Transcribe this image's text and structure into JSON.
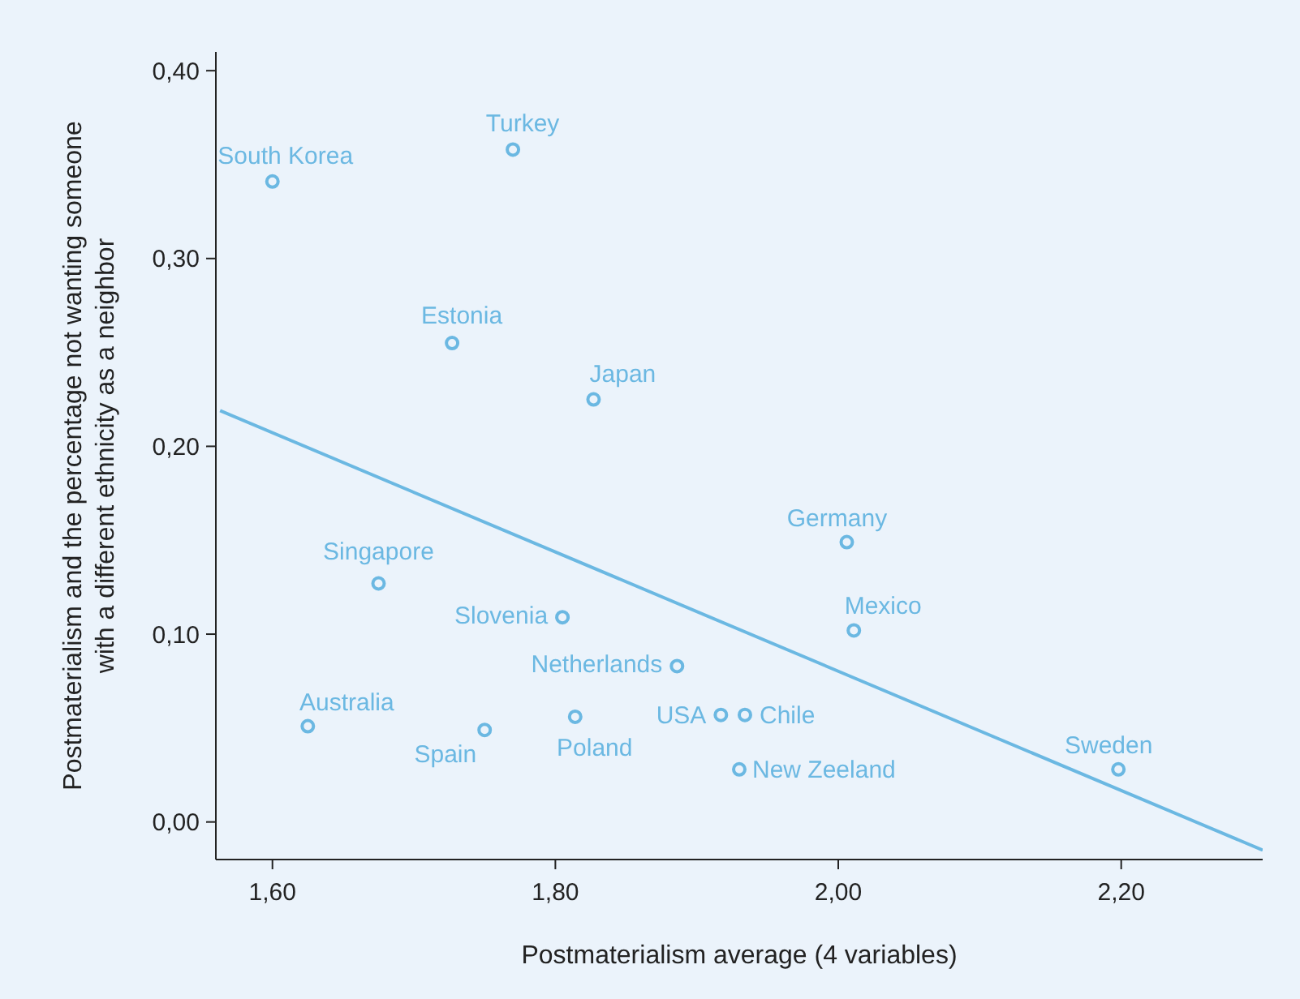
{
  "chart_data": {
    "type": "scatter",
    "xlabel": "Postmaterialism average (4 variables)",
    "ylabel": "Postmaterialism and the percentage not wanting someone with a different ethnicity as a neighbor",
    "xlim": [
      1.56,
      2.3
    ],
    "ylim": [
      -0.02,
      0.41
    ],
    "xticks": [
      {
        "value": 1.6,
        "label": "1,60"
      },
      {
        "value": 1.8,
        "label": "1,80"
      },
      {
        "value": 2.0,
        "label": "2,00"
      },
      {
        "value": 2.2,
        "label": "2,20"
      }
    ],
    "yticks": [
      {
        "value": 0,
        "label": "0,00"
      },
      {
        "value": 0.1,
        "label": "0,10"
      },
      {
        "value": 0.2,
        "label": "0,20"
      },
      {
        "value": 0.3,
        "label": "0,30"
      },
      {
        "value": 0.4,
        "label": "0,40"
      }
    ],
    "grid": false,
    "series": [
      {
        "marker": "circle",
        "color": "#6bb8e2",
        "x": [
          1.6,
          1.77,
          1.727,
          1.827,
          2.006,
          2.011,
          1.675,
          1.805,
          1.886,
          1.625,
          1.75,
          1.814,
          1.917,
          1.934,
          1.93,
          2.198
        ],
        "values": [
          0.341,
          0.358,
          0.255,
          0.225,
          0.149,
          0.102,
          0.127,
          0.109,
          0.083,
          0.051,
          0.049,
          0.056,
          0.057,
          0.057,
          0.028,
          0.028
        ]
      },
      {
        "type": "line",
        "color": "#6bb8e2",
        "x": [
          1.563,
          2.3
        ],
        "values": [
          0.219,
          -0.015
        ]
      }
    ],
    "annotations": [
      {
        "text": "South Korea",
        "x": 1.6,
        "y": 0.341
      },
      {
        "text": "Turkey",
        "x": 1.77,
        "y": 0.358
      },
      {
        "text": "Estonia",
        "x": 1.727,
        "y": 0.255
      },
      {
        "text": "Japan",
        "x": 1.827,
        "y": 0.225
      },
      {
        "text": "Germany",
        "x": 2.006,
        "y": 0.149
      },
      {
        "text": "Mexico",
        "x": 2.011,
        "y": 0.102
      },
      {
        "text": "Singapore",
        "x": 1.675,
        "y": 0.127
      },
      {
        "text": "Slovenia",
        "x": 1.805,
        "y": 0.109
      },
      {
        "text": "Netherlands",
        "x": 1.886,
        "y": 0.083
      },
      {
        "text": "Australia",
        "x": 1.625,
        "y": 0.051
      },
      {
        "text": "Spain",
        "x": 1.75,
        "y": 0.049
      },
      {
        "text": "Poland",
        "x": 1.814,
        "y": 0.056
      },
      {
        "text": "USA",
        "x": 1.917,
        "y": 0.057
      },
      {
        "text": "Chile",
        "x": 1.934,
        "y": 0.057
      },
      {
        "text": "New Zeeland",
        "x": 1.93,
        "y": 0.028
      },
      {
        "text": "Sweden",
        "x": 2.198,
        "y": 0.028
      }
    ]
  }
}
